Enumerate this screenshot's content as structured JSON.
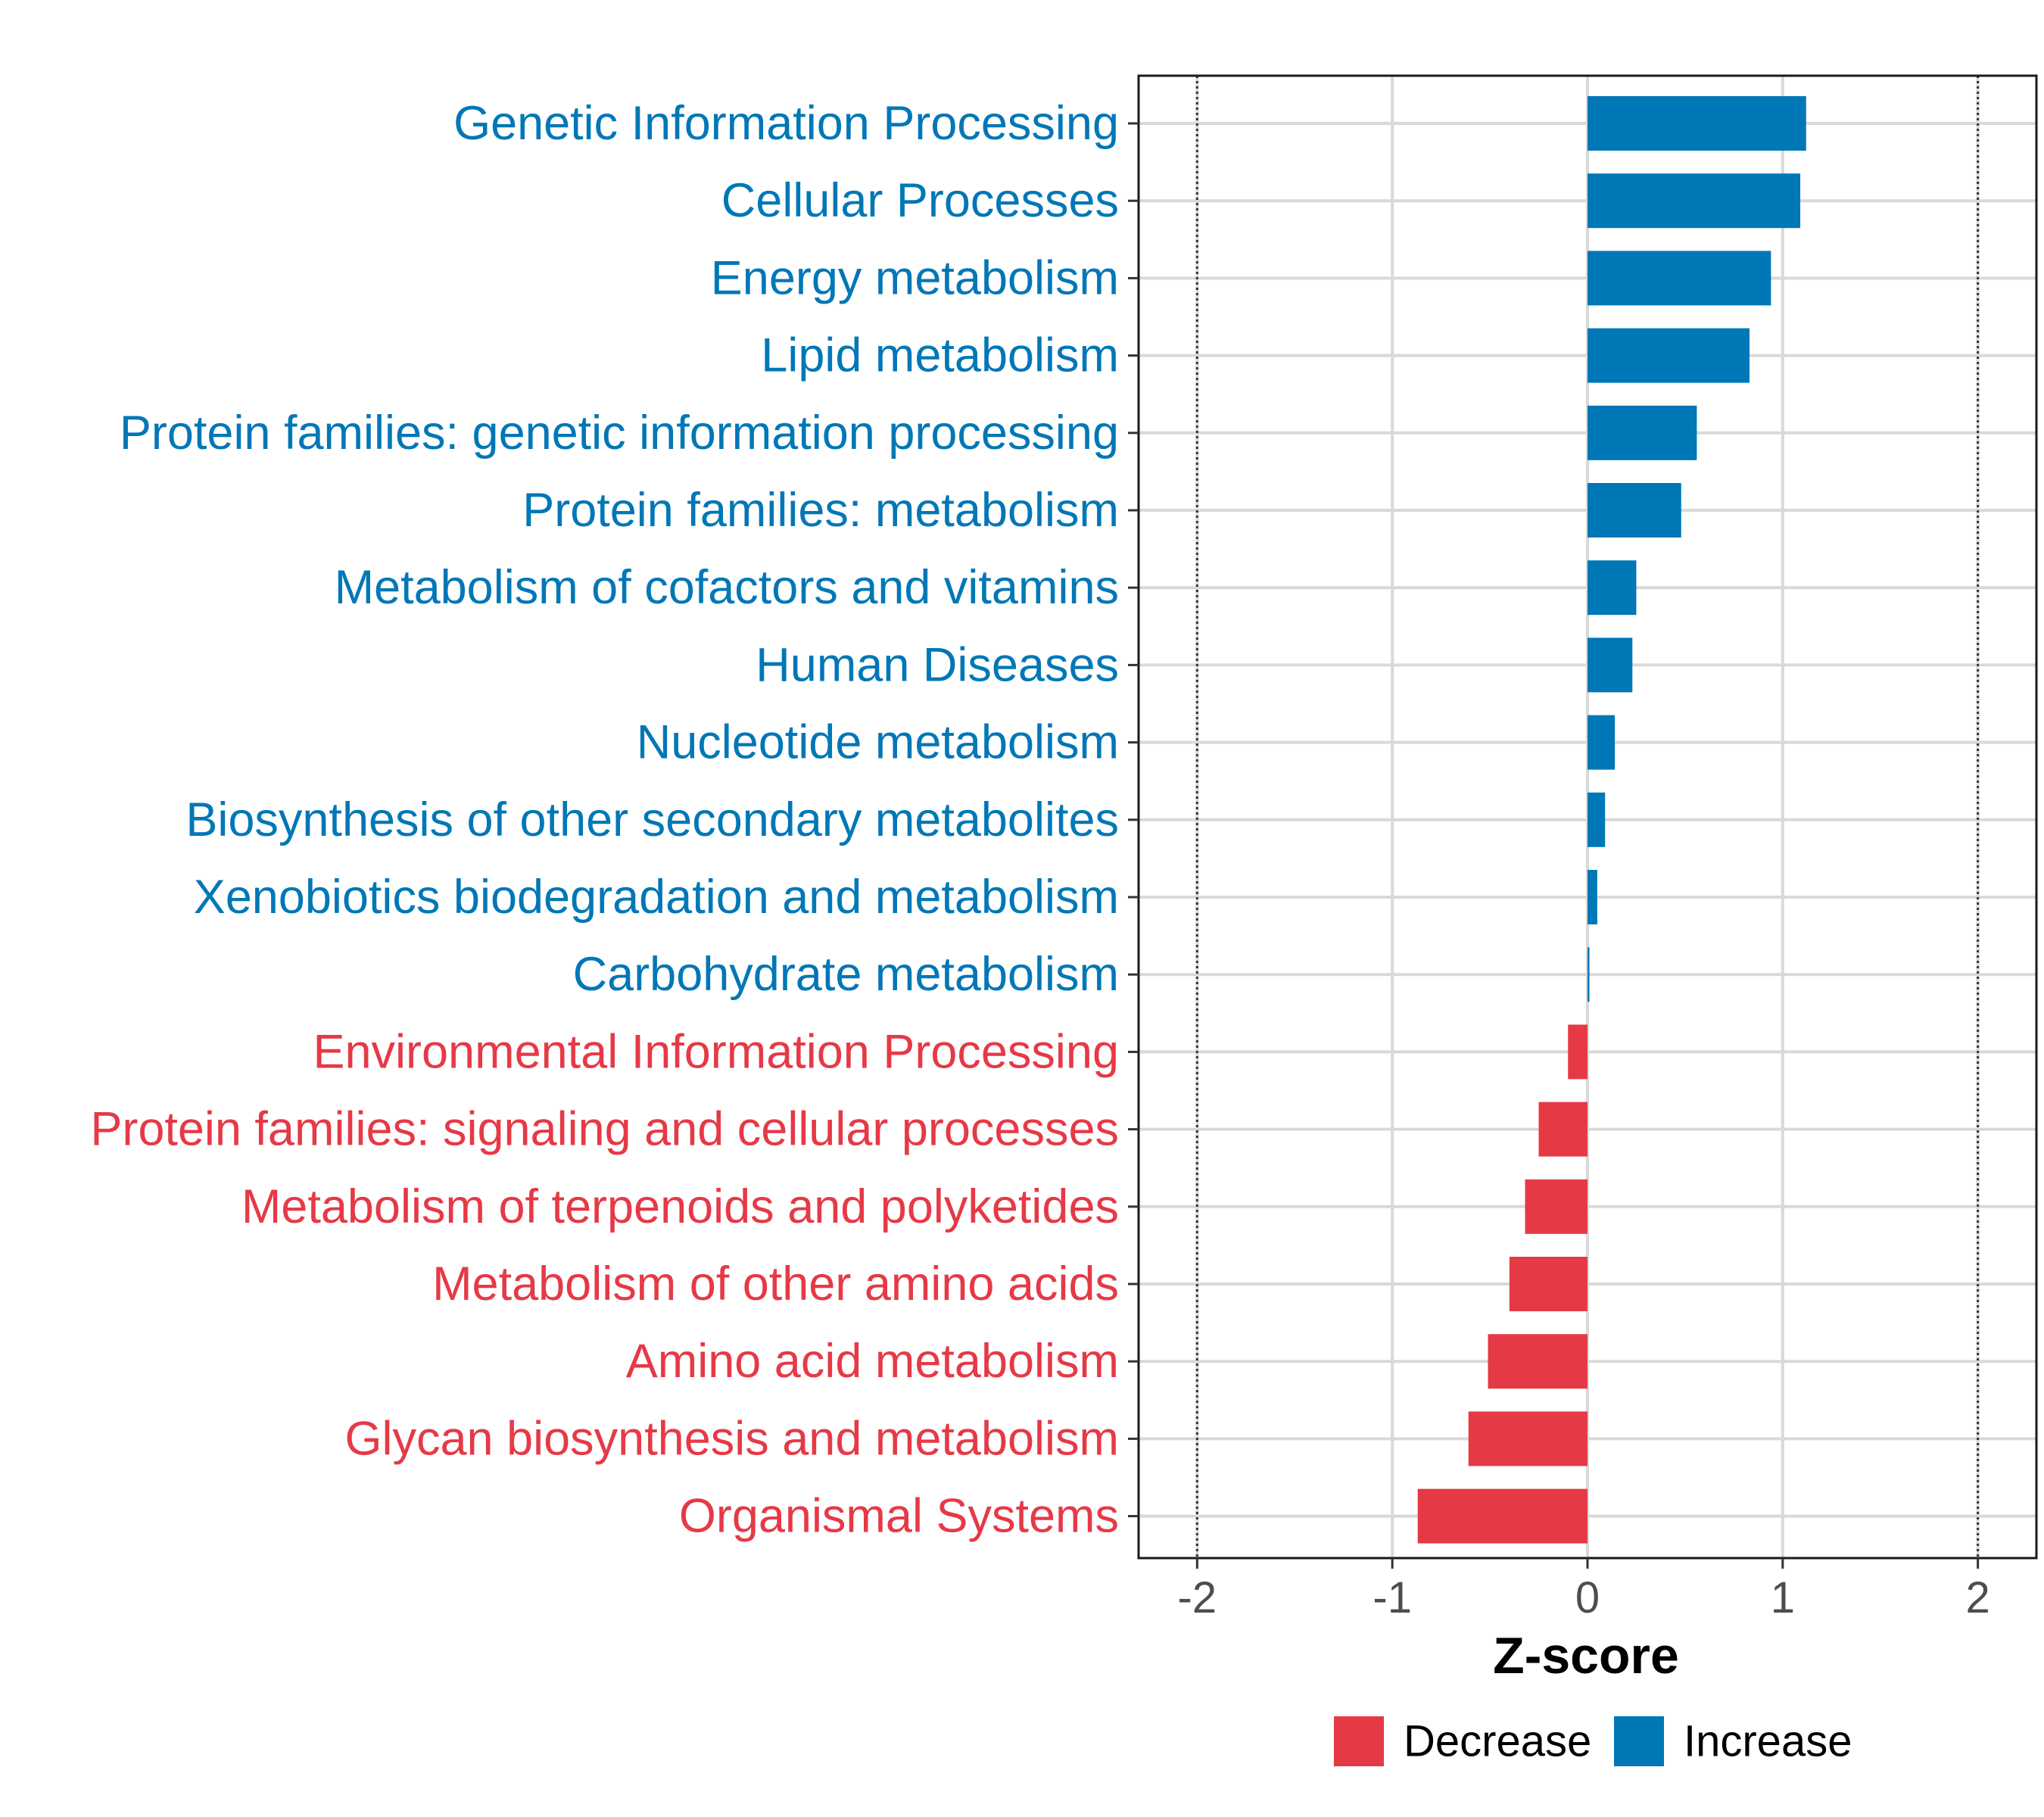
{
  "chart_data": {
    "type": "bar",
    "orientation": "horizontal",
    "title": "",
    "xlabel": "Z-score",
    "ylabel": "",
    "xlim": [
      -2.3,
      2.3
    ],
    "xticks": [
      -2,
      -1,
      0,
      1,
      2
    ],
    "xtick_labels": [
      "-2",
      "-1",
      "0",
      "1",
      "2"
    ],
    "reference_lines": [
      -2,
      2
    ],
    "grid": true,
    "colors": {
      "Decrease": "#e63946",
      "Increase": "#0077b6"
    },
    "legend": {
      "position": "bottom",
      "entries": [
        {
          "label": "Decrease",
          "color": "#e63946"
        },
        {
          "label": "Increase",
          "color": "#0077b6"
        }
      ]
    },
    "categories": [
      "Genetic Information Processing",
      "Cellular Processes",
      "Energy metabolism",
      "Lipid metabolism",
      "Protein families: genetic information processing",
      "Protein families: metabolism",
      "Metabolism of cofactors and vitamins",
      "Human Diseases",
      "Nucleotide metabolism",
      "Biosynthesis of other secondary metabolites",
      "Xenobiotics biodegradation and metabolism",
      "Carbohydrate metabolism",
      "Environmental Information Processing",
      "Protein families: signaling and cellular processes",
      "Metabolism of terpenoids and polyketides",
      "Metabolism of other amino acids",
      "Amino acid metabolism",
      "Glycan biosynthesis and metabolism",
      "Organismal Systems"
    ],
    "values": [
      1.12,
      1.09,
      0.94,
      0.83,
      0.56,
      0.48,
      0.25,
      0.23,
      0.14,
      0.09,
      0.05,
      0.01,
      -0.1,
      -0.25,
      -0.32,
      -0.4,
      -0.51,
      -0.61,
      -0.87
    ],
    "groups": [
      "Increase",
      "Increase",
      "Increase",
      "Increase",
      "Increase",
      "Increase",
      "Increase",
      "Increase",
      "Increase",
      "Increase",
      "Increase",
      "Increase",
      "Decrease",
      "Decrease",
      "Decrease",
      "Decrease",
      "Decrease",
      "Decrease",
      "Decrease"
    ]
  }
}
